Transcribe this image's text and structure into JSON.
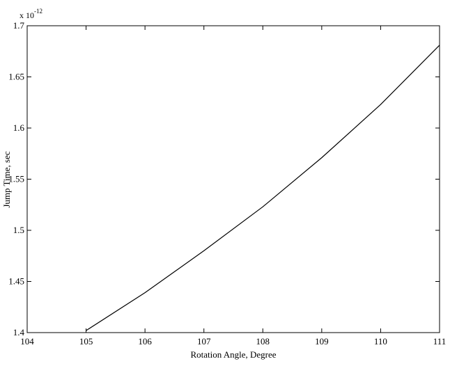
{
  "chart_data": {
    "type": "line",
    "title": "",
    "xlabel": "Rotation Angle, Degree",
    "ylabel": "Jump Time, sec",
    "y_exponent": {
      "base": "x 10",
      "power": "-12"
    },
    "xlim": [
      104,
      111
    ],
    "ylim": [
      1.4,
      1.7
    ],
    "xticks": [
      "104",
      "105",
      "106",
      "107",
      "108",
      "109",
      "110",
      "111"
    ],
    "yticks": [
      "1.4",
      "1.45",
      "1.5",
      "1.55",
      "1.6",
      "1.65",
      "1.7"
    ],
    "grid": false,
    "series": [
      {
        "x": [
          105,
          106,
          107,
          108,
          109,
          110,
          111
        ],
        "values": [
          1.402,
          1.439,
          1.48,
          1.523,
          1.571,
          1.623,
          1.681
        ]
      }
    ]
  }
}
